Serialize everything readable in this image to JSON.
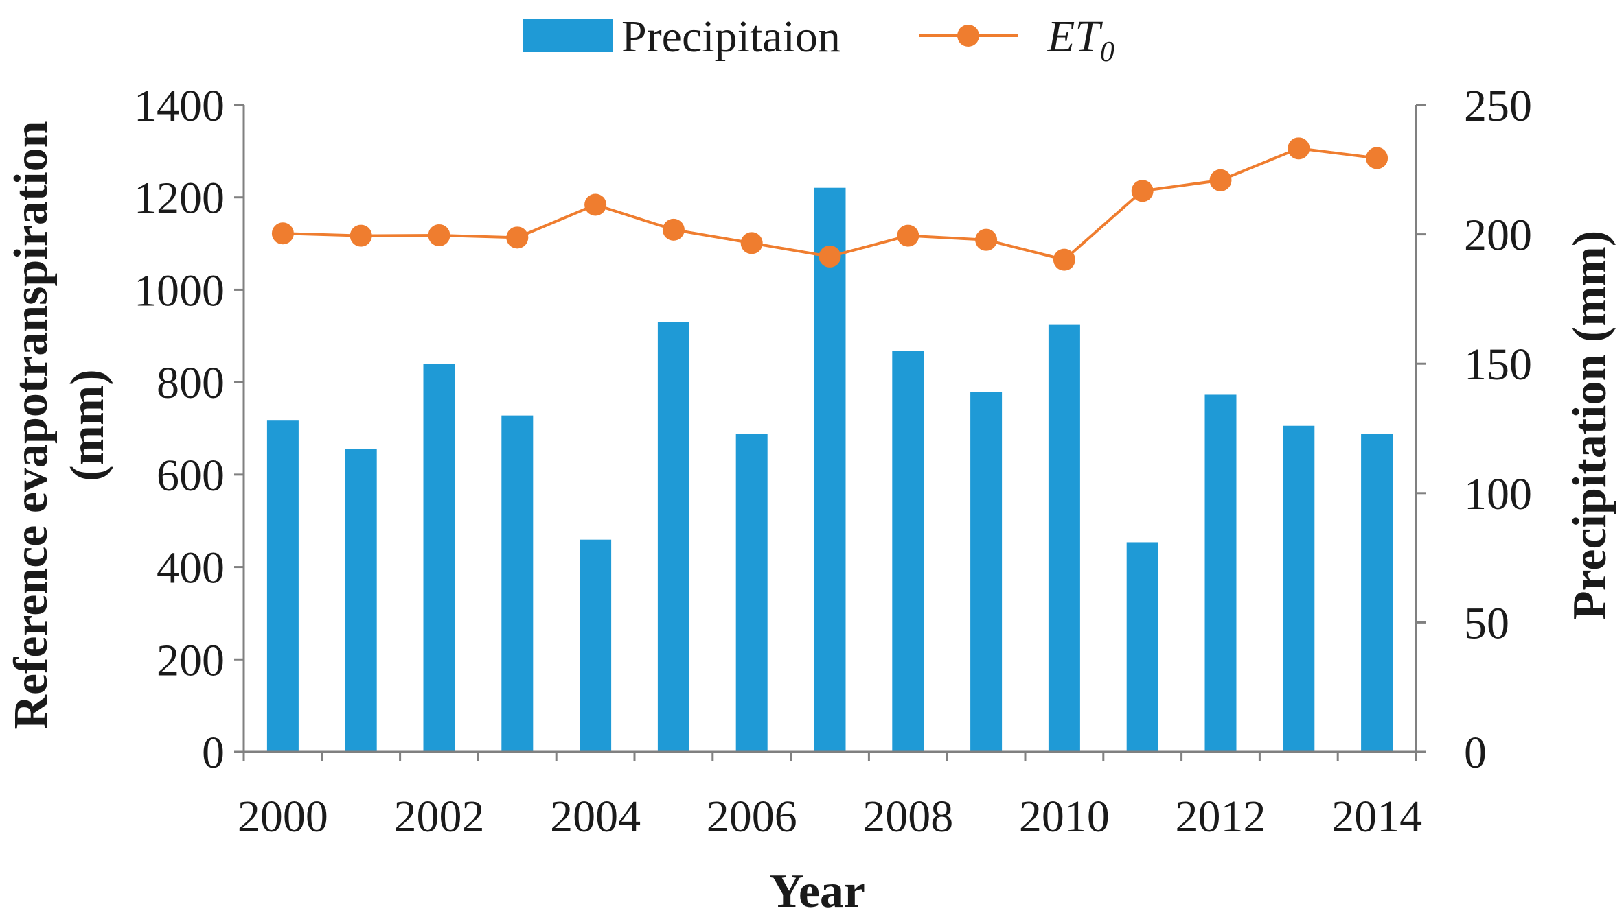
{
  "chart_data": {
    "type": "bar+line",
    "legend": {
      "position": "top-center",
      "bar_label": "Precipitaion",
      "line_label_main": "ET",
      "line_label_sub": "0"
    },
    "xlabel": "Year",
    "ylabel_left_line1": "Reference evapotranspiration",
    "ylabel_left_line2": "(mm)",
    "ylabel_right": "Precipitation (mm)",
    "categories": [
      2000,
      2001,
      2002,
      2003,
      2004,
      2005,
      2006,
      2007,
      2008,
      2009,
      2010,
      2011,
      2012,
      2013,
      2014
    ],
    "x_tick_labels": [
      "2000",
      "2002",
      "2004",
      "2006",
      "2008",
      "2010",
      "2012",
      "2014"
    ],
    "ylim_left": [
      0,
      1400
    ],
    "yticks_left": [
      "0",
      "200",
      "400",
      "600",
      "800",
      "1000",
      "1200",
      "1400"
    ],
    "ylim_right": [
      0,
      250
    ],
    "yticks_right": [
      "0",
      "50",
      "100",
      "150",
      "200",
      "250"
    ],
    "grid": false,
    "series": [
      {
        "name": "Precipitaion",
        "kind": "bar",
        "axis": "right",
        "color": "#1f9ad6",
        "values": [
          128,
          117,
          150,
          130,
          82,
          166,
          123,
          218,
          155,
          139,
          165,
          81,
          138,
          126,
          123
        ]
      },
      {
        "name": "ET0",
        "kind": "line",
        "axis": "left",
        "color": "#ef7d2f",
        "values": [
          1122,
          1117,
          1118,
          1113,
          1184,
          1130,
          1101,
          1072,
          1117,
          1108,
          1065,
          1214,
          1237,
          1306,
          1285
        ]
      }
    ]
  }
}
